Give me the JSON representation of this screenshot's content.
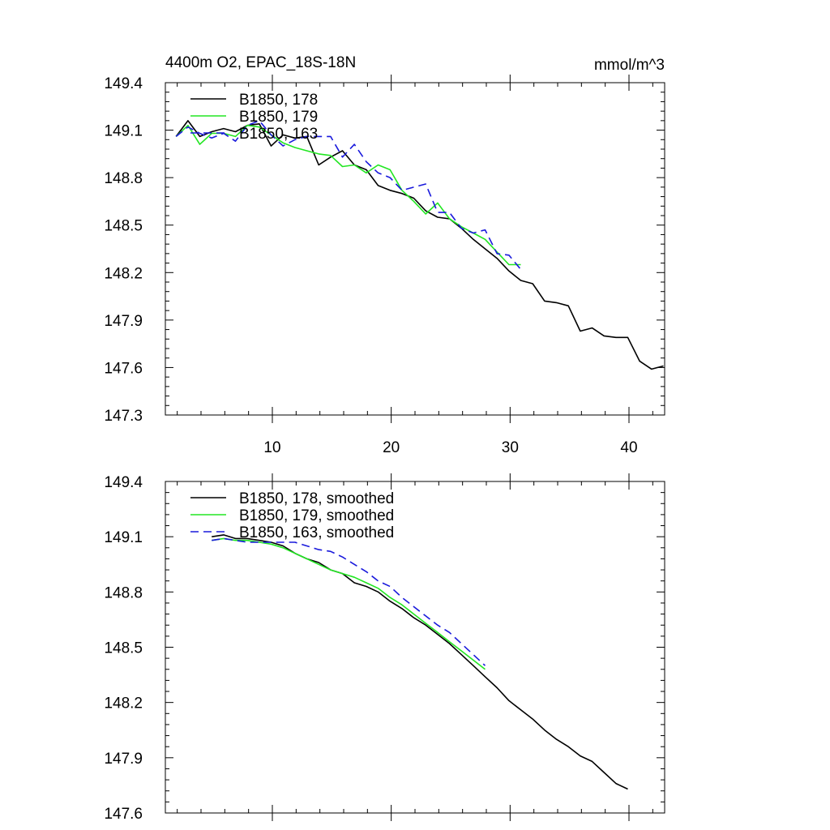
{
  "header": {
    "title": "4400m O2, EPAC_18S-18N",
    "units": "mmol/m^3"
  },
  "colors": {
    "178": "#000000",
    "179": "#22e622",
    "163": "#1a1adc",
    "axis": "#000000",
    "background": "#ffffff"
  },
  "chart_data": [
    {
      "type": "line",
      "panel": "top",
      "xlim": [
        1,
        43
      ],
      "ylim": [
        147.3,
        149.4
      ],
      "x_major_ticks": [
        10,
        20,
        30,
        40
      ],
      "x_tick_labels": [
        "10",
        "20",
        "30",
        "40"
      ],
      "y_tick_labels": [
        "149.4",
        "149.1",
        "148.8",
        "148.5",
        "148.2",
        "147.9",
        "147.6",
        "147.3"
      ],
      "grid": false,
      "legend_placement": "top-left",
      "series": [
        {
          "name": "B1850, 178",
          "color_key": "178",
          "dash": "solid",
          "x": [
            1.9,
            2.9,
            3.9,
            4.9,
            5.9,
            6.9,
            7.9,
            8.9,
            9.9,
            10.9,
            11.9,
            12.9,
            13.9,
            14.9,
            15.9,
            16.9,
            17.9,
            18.9,
            19.9,
            20.9,
            21.9,
            22.9,
            23.9,
            24.9,
            25.9,
            26.9,
            27.9,
            28.9,
            29.9,
            30.9,
            31.9,
            32.9,
            33.9,
            34.9,
            35.9,
            36.9,
            37.9,
            38.9,
            39.9,
            40.9,
            41.9,
            42.9
          ],
          "y": [
            149.06,
            149.16,
            149.06,
            149.09,
            149.11,
            149.09,
            149.13,
            149.14,
            149.0,
            149.07,
            149.05,
            149.06,
            148.88,
            148.93,
            148.97,
            148.88,
            148.85,
            148.75,
            148.72,
            148.7,
            148.67,
            148.59,
            148.55,
            148.54,
            148.48,
            148.41,
            148.35,
            148.29,
            148.21,
            148.15,
            148.13,
            148.02,
            148.01,
            147.99,
            147.83,
            147.85,
            147.8,
            147.79,
            147.79,
            147.64,
            147.59,
            147.61
          ]
        },
        {
          "name": "B1850, 179",
          "color_key": "179",
          "dash": "solid",
          "x": [
            1.9,
            2.9,
            3.9,
            4.9,
            5.9,
            6.9,
            7.9,
            8.9,
            9.9,
            10.9,
            11.9,
            12.9,
            13.9,
            14.9,
            15.9,
            16.9,
            17.9,
            18.9,
            19.9,
            20.9,
            21.9,
            22.9,
            23.9,
            24.9,
            25.9,
            26.9,
            27.9,
            28.9,
            29.9,
            30.9
          ],
          "y": [
            149.06,
            149.13,
            149.01,
            149.08,
            149.08,
            149.06,
            149.13,
            149.12,
            149.07,
            149.02,
            148.99,
            148.97,
            148.95,
            148.94,
            148.87,
            148.88,
            148.83,
            148.88,
            148.85,
            148.72,
            148.65,
            148.57,
            148.64,
            148.54,
            148.49,
            148.45,
            148.41,
            148.33,
            148.25,
            148.25
          ]
        },
        {
          "name": "B1850, 163",
          "color_key": "163",
          "dash": "dashed",
          "x": [
            1.9,
            2.9,
            3.9,
            4.9,
            5.9,
            6.9,
            7.9,
            8.9,
            9.9,
            10.9,
            11.9,
            12.9,
            13.9,
            14.9,
            15.9,
            16.9,
            17.9,
            18.9,
            19.9,
            20.9,
            21.9,
            22.9,
            23.9,
            24.9,
            25.9,
            26.9,
            27.9,
            28.9,
            29.9,
            30.9
          ],
          "y": [
            149.06,
            149.12,
            149.08,
            149.05,
            149.08,
            149.03,
            149.13,
            149.16,
            149.07,
            149.0,
            149.04,
            149.06,
            149.06,
            149.06,
            148.93,
            149.01,
            148.9,
            148.83,
            148.8,
            148.72,
            148.74,
            148.76,
            148.58,
            148.58,
            148.48,
            148.45,
            148.47,
            148.32,
            148.31,
            148.22
          ]
        }
      ]
    },
    {
      "type": "line",
      "panel": "bottom",
      "xlim": [
        1,
        43
      ],
      "ylim": [
        147.6,
        149.4
      ],
      "x_major_ticks": [
        10,
        20,
        30,
        40
      ],
      "x_tick_labels": [],
      "y_tick_labels": [
        "149.4",
        "149.1",
        "148.8",
        "148.5",
        "148.2",
        "147.9",
        "147.6"
      ],
      "grid": false,
      "legend_placement": "top-left",
      "series": [
        {
          "name": "B1850, 178, smoothed",
          "color_key": "178",
          "dash": "solid",
          "x": [
            4.9,
            5.9,
            6.9,
            7.9,
            8.9,
            9.9,
            10.9,
            11.9,
            12.9,
            13.9,
            14.9,
            15.9,
            16.9,
            17.9,
            18.9,
            19.9,
            20.9,
            21.9,
            22.9,
            23.9,
            24.9,
            25.9,
            26.9,
            27.9,
            28.9,
            29.9,
            30.9,
            31.9,
            32.9,
            33.9,
            34.9,
            35.9,
            36.9,
            37.9,
            38.9,
            39.9
          ],
          "y": [
            149.1,
            149.11,
            149.09,
            149.09,
            149.08,
            149.07,
            149.05,
            149.01,
            148.98,
            148.96,
            148.92,
            148.9,
            148.85,
            148.83,
            148.8,
            148.75,
            148.71,
            148.66,
            148.62,
            148.57,
            148.52,
            148.46,
            148.4,
            148.34,
            148.28,
            148.21,
            148.16,
            148.11,
            148.05,
            148.0,
            147.96,
            147.91,
            147.88,
            147.82,
            147.76,
            147.73
          ]
        },
        {
          "name": "B1850, 179, smoothed",
          "color_key": "179",
          "dash": "solid",
          "x": [
            4.9,
            5.9,
            6.9,
            7.9,
            8.9,
            9.9,
            10.9,
            11.9,
            12.9,
            13.9,
            14.9,
            15.9,
            16.9,
            17.9,
            18.9,
            19.9,
            20.9,
            21.9,
            22.9,
            23.9,
            24.9,
            25.9,
            26.9,
            27.9
          ],
          "y": [
            149.08,
            149.09,
            149.08,
            149.08,
            149.07,
            149.06,
            149.04,
            149.01,
            148.98,
            148.95,
            148.92,
            148.9,
            148.88,
            148.85,
            148.82,
            148.77,
            148.73,
            148.68,
            148.63,
            148.58,
            148.53,
            148.48,
            148.43,
            148.38
          ]
        },
        {
          "name": "B1850, 163, smoothed",
          "color_key": "163",
          "dash": "dashed",
          "x": [
            4.9,
            5.9,
            6.9,
            7.9,
            8.9,
            9.9,
            10.9,
            11.9,
            12.9,
            13.9,
            14.9,
            15.9,
            16.9,
            17.9,
            18.9,
            19.9,
            20.9,
            21.9,
            22.9,
            23.9,
            24.9,
            25.9,
            26.9,
            27.9
          ],
          "y": [
            149.08,
            149.09,
            149.08,
            149.07,
            149.07,
            149.07,
            149.07,
            149.07,
            149.05,
            149.03,
            149.02,
            148.99,
            148.95,
            148.91,
            148.86,
            148.83,
            148.77,
            148.72,
            148.67,
            148.62,
            148.58,
            148.52,
            148.46,
            148.4
          ]
        }
      ]
    }
  ]
}
